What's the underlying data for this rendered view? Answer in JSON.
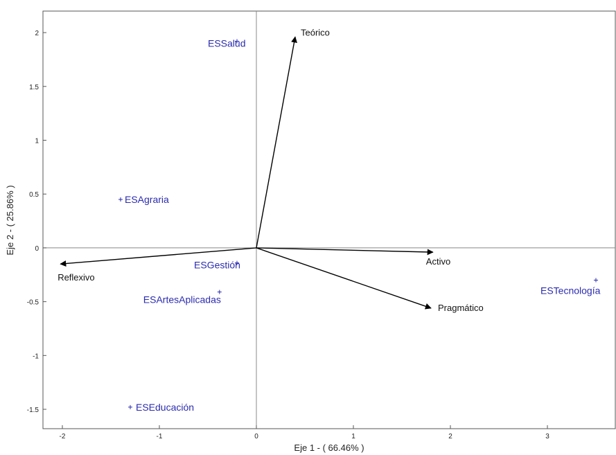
{
  "chart_data": {
    "type": "scatter",
    "subtype": "biplot",
    "title": "",
    "xlabel": "Eje 1 - ( 66.46% )",
    "ylabel": "Eje 2 - ( 25.86% )",
    "xlim": [
      -2.2,
      3.7
    ],
    "ylim": [
      -1.68,
      2.2
    ],
    "x_ticks": [
      -2,
      -1,
      0,
      1,
      2,
      3
    ],
    "x_tick_labels": [
      "-2",
      "-1",
      "0",
      "1",
      "2",
      "3"
    ],
    "y_ticks": [
      2,
      1.5,
      1,
      0.5,
      0,
      -0.5,
      -1,
      -1.5
    ],
    "y_tick_labels": [
      "2",
      "1.5",
      "1",
      "0.5",
      "0",
      "-0.5",
      "-1",
      "-1.5"
    ],
    "grid": false,
    "zero_lines": true,
    "colors": {
      "observations": "#2b2bb0",
      "vectors": "#000000",
      "axes": "#888888"
    },
    "observations": [
      {
        "name": "ESSalud",
        "x": -0.2,
        "y": 1.92
      },
      {
        "name": "ESAgraria",
        "x": -1.4,
        "y": 0.45
      },
      {
        "name": "ESGestión",
        "x": -0.2,
        "y": -0.14
      },
      {
        "name": "ESArtesAplicadas",
        "x": -0.38,
        "y": -0.41
      },
      {
        "name": "ESEducación",
        "x": -1.3,
        "y": -1.48
      },
      {
        "name": "ESTecnología",
        "x": 3.5,
        "y": -0.3
      }
    ],
    "vectors": [
      {
        "name": "Teórico",
        "x": 0.4,
        "y": 1.96
      },
      {
        "name": "Activo",
        "x": 1.82,
        "y": -0.04
      },
      {
        "name": "Pragmático",
        "x": 1.8,
        "y": -0.56
      },
      {
        "name": "Reflexivo",
        "x": -2.02,
        "y": -0.15
      }
    ]
  }
}
